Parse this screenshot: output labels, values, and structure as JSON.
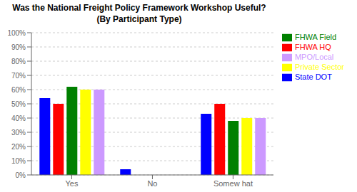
{
  "chart_data": {
    "type": "bar",
    "title": "Was the National Freight Policy Framework Workshop Useful?",
    "subtitle": "(By Participant Type)",
    "categories": [
      "Yes",
      "No",
      "Somew hat"
    ],
    "series": [
      {
        "name": "State DOT",
        "color": "#0000ff",
        "values": [
          0.54,
          0.04,
          0.43
        ]
      },
      {
        "name": "FHWA HQ",
        "color": "#ff0000",
        "values": [
          0.5,
          0.0,
          0.5
        ]
      },
      {
        "name": "FHWA Field",
        "color": "#008000",
        "values": [
          0.62,
          0.0,
          0.38
        ]
      },
      {
        "name": "Private Sector",
        "color": "#ffff00",
        "values": [
          0.6,
          0.0,
          0.4
        ]
      },
      {
        "name": "MPO/Local",
        "color": "#cc99ff",
        "values": [
          0.6,
          0.0,
          0.4
        ]
      }
    ],
    "ylim": [
      0,
      1.0
    ],
    "yticks": [
      {
        "value": 0.0,
        "label": "0%"
      },
      {
        "value": 0.1,
        "label": "10%"
      },
      {
        "value": 0.2,
        "label": "20%"
      },
      {
        "value": 0.3,
        "label": "30%"
      },
      {
        "value": 0.4,
        "label": "40%"
      },
      {
        "value": 0.5,
        "label": "50%"
      },
      {
        "value": 0.6,
        "label": "60%"
      },
      {
        "value": 0.7,
        "label": "70%"
      },
      {
        "value": 0.8,
        "label": "80%"
      },
      {
        "value": 0.9,
        "label": "90%"
      },
      {
        "value": 1.0,
        "label": "100%"
      }
    ],
    "grid": true,
    "legend": "right"
  }
}
